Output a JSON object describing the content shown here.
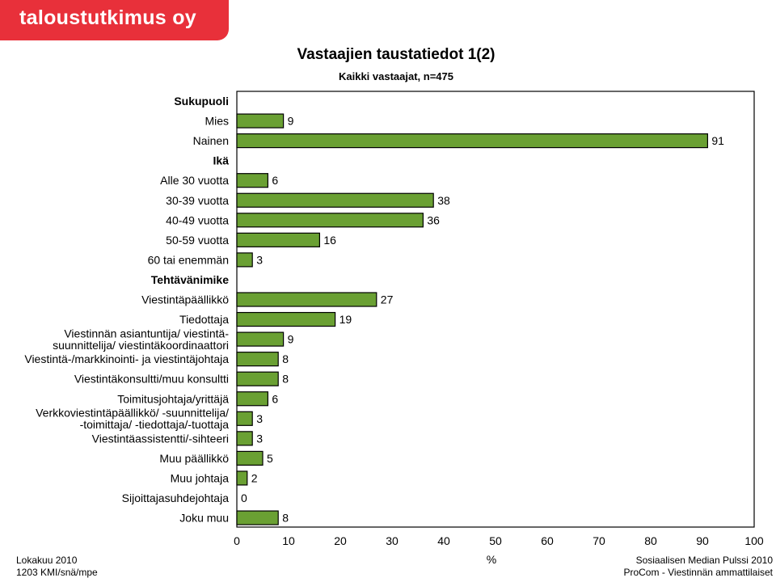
{
  "brand": {
    "logo_text": "taloustutkimus oy",
    "color": "#e8303a"
  },
  "footer": {
    "left_line1": "Lokakuu 2010",
    "left_line2": "1203 KMI/snä/mpe",
    "right_line1": "Sosiaalisen Median Pulssi 2010",
    "right_line2": "ProCom - Viestinnän ammattilaiset"
  },
  "chart_data": {
    "type": "bar",
    "orientation": "horizontal",
    "title": "Vastaajien taustatiedot 1(2)",
    "subtitle": "Kaikki vastaajat, n=475",
    "xlabel": "%",
    "xlim": [
      0,
      100
    ],
    "xticks": [
      0,
      10,
      20,
      30,
      40,
      50,
      60,
      70,
      80,
      90,
      100
    ],
    "bar_color": "#6aa033",
    "grid": false,
    "rows": [
      {
        "kind": "header",
        "label": "Sukupuoli"
      },
      {
        "kind": "bar",
        "label": [
          "Mies"
        ],
        "value": 9,
        "value_label": "9"
      },
      {
        "kind": "bar",
        "label": [
          "Nainen"
        ],
        "value": 91,
        "value_label": "91"
      },
      {
        "kind": "header",
        "label": "Ikä"
      },
      {
        "kind": "bar",
        "label": [
          "Alle 30 vuotta"
        ],
        "value": 6,
        "value_label": "6"
      },
      {
        "kind": "bar",
        "label": [
          "30-39 vuotta"
        ],
        "value": 38,
        "value_label": "38"
      },
      {
        "kind": "bar",
        "label": [
          "40-49 vuotta"
        ],
        "value": 36,
        "value_label": "36"
      },
      {
        "kind": "bar",
        "label": [
          "50-59 vuotta"
        ],
        "value": 16,
        "value_label": "16"
      },
      {
        "kind": "bar",
        "label": [
          "60 tai enemmän"
        ],
        "value": 3,
        "value_label": "3"
      },
      {
        "kind": "header",
        "label": "Tehtävänimike"
      },
      {
        "kind": "bar",
        "label": [
          "Viestintäpäällikkö"
        ],
        "value": 27,
        "value_label": "27"
      },
      {
        "kind": "bar",
        "label": [
          "Tiedottaja"
        ],
        "value": 19,
        "value_label": "19"
      },
      {
        "kind": "bar",
        "label": [
          "Viestinnän asiantuntija/ viestintä-",
          "suunnittelija/ viestintäkoordinaattori"
        ],
        "value": 9,
        "value_label": "9"
      },
      {
        "kind": "bar",
        "label": [
          "Viestintä-/markkinointi- ja viestintäjohtaja"
        ],
        "value": 8,
        "value_label": "8"
      },
      {
        "kind": "bar",
        "label": [
          "Viestintäkonsultti/muu konsultti"
        ],
        "value": 8,
        "value_label": "8"
      },
      {
        "kind": "bar",
        "label": [
          "Toimitusjohtaja/yrittäjä"
        ],
        "value": 6,
        "value_label": "6"
      },
      {
        "kind": "bar",
        "label": [
          "Verkkoviestintäpäällikkö/ -suunnittelija/",
          "-toimittaja/ -tiedottaja/-tuottaja"
        ],
        "value": 3,
        "value_label": "3"
      },
      {
        "kind": "bar",
        "label": [
          "Viestintäassistentti/-sihteeri"
        ],
        "value": 3,
        "value_label": "3"
      },
      {
        "kind": "bar",
        "label": [
          "Muu päällikkö"
        ],
        "value": 5,
        "value_label": "5"
      },
      {
        "kind": "bar",
        "label": [
          "Muu johtaja"
        ],
        "value": 2,
        "value_label": "2"
      },
      {
        "kind": "bar",
        "label": [
          "Sijoittajasuhdejohtaja"
        ],
        "value": 0,
        "value_label": "0"
      },
      {
        "kind": "bar",
        "label": [
          "Joku muu"
        ],
        "value": 8,
        "value_label": "8"
      }
    ]
  }
}
